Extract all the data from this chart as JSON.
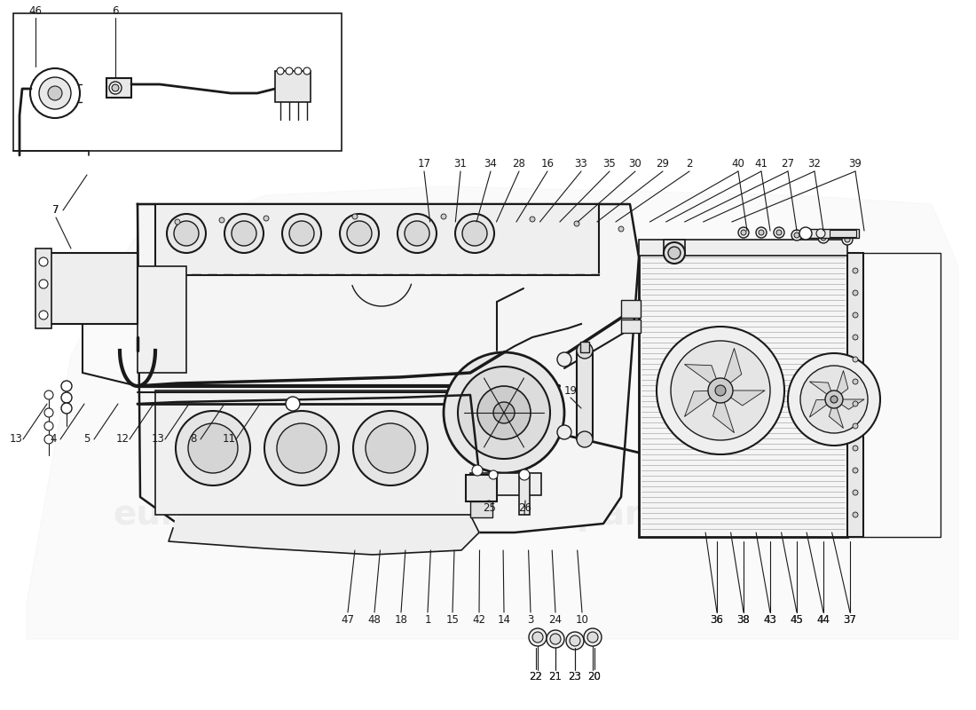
{
  "bg_color": "#ffffff",
  "line_color": "#1a1a1a",
  "gray_light": "#e8e8e8",
  "gray_mid": "#cccccc",
  "gray_dark": "#999999",
  "watermark_color": "#d0d0d0",
  "watermark_text": "eurospares",
  "figsize": [
    11.0,
    8.0
  ],
  "dpi": 100,
  "top_labels": [
    [
      "46",
      40,
      12
    ],
    [
      "6",
      130,
      12
    ],
    [
      "17",
      478,
      185
    ],
    [
      "31",
      519,
      185
    ],
    [
      "34",
      553,
      185
    ],
    [
      "28",
      585,
      185
    ],
    [
      "16",
      617,
      185
    ],
    [
      "33",
      655,
      185
    ],
    [
      "35",
      687,
      185
    ],
    [
      "30",
      716,
      185
    ],
    [
      "29",
      747,
      185
    ],
    [
      "2",
      777,
      185
    ],
    [
      "40",
      832,
      185
    ],
    [
      "41",
      858,
      185
    ],
    [
      "27",
      888,
      185
    ],
    [
      "32",
      918,
      185
    ],
    [
      "39",
      964,
      185
    ]
  ],
  "left_labels": [
    [
      "7",
      63,
      237
    ],
    [
      "13",
      18,
      495
    ],
    [
      "4",
      60,
      495
    ],
    [
      "5",
      98,
      495
    ],
    [
      "12",
      138,
      495
    ],
    [
      "13",
      178,
      495
    ],
    [
      "8",
      218,
      495
    ],
    [
      "11",
      258,
      495
    ]
  ],
  "bottom_labels": [
    [
      "47",
      392,
      698
    ],
    [
      "48",
      422,
      698
    ],
    [
      "18",
      452,
      698
    ],
    [
      "1",
      482,
      698
    ],
    [
      "15",
      510,
      698
    ],
    [
      "42",
      540,
      698
    ],
    [
      "14",
      568,
      698
    ],
    [
      "3",
      598,
      698
    ],
    [
      "24",
      626,
      698
    ],
    [
      "10",
      656,
      698
    ],
    [
      "36",
      808,
      698
    ],
    [
      "38",
      838,
      698
    ],
    [
      "43",
      868,
      698
    ],
    [
      "45",
      898,
      698
    ],
    [
      "44",
      928,
      698
    ],
    [
      "37",
      958,
      698
    ]
  ],
  "misc_labels": [
    [
      "25",
      552,
      572
    ],
    [
      "26",
      592,
      572
    ],
    [
      "19",
      643,
      440
    ],
    [
      "22",
      604,
      762
    ],
    [
      "21",
      626,
      762
    ],
    [
      "23",
      648,
      762
    ],
    [
      "20",
      670,
      762
    ]
  ]
}
